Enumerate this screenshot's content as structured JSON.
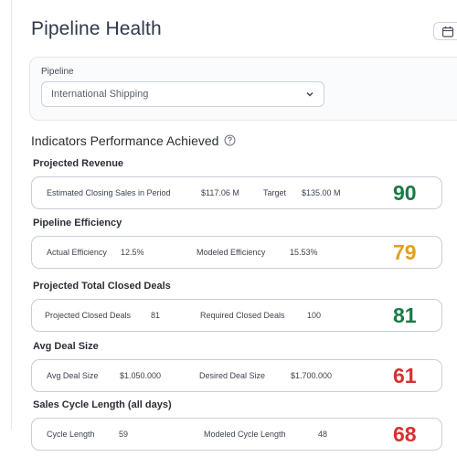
{
  "page": {
    "title": "Pipeline Health"
  },
  "filter": {
    "label": "Pipeline",
    "selected": "International Shipping"
  },
  "section": {
    "title": "Indicators Performance Achieved"
  },
  "colors": {
    "green": "#1a7a45",
    "orange": "#e0a020",
    "red": "#d83030"
  },
  "indicators": [
    {
      "title": "Projected Revenue",
      "f1_label": "Estimated Closing Sales in Period",
      "f1_value": "$117.06 M",
      "f2_label": "Target",
      "f2_value": "$135.00 M",
      "score": "90",
      "score_color": "#1a7a45"
    },
    {
      "title": "Pipeline Efficiency",
      "f1_label": "Actual Efficiency",
      "f1_value": "12.5%",
      "f2_label": "Modeled Efficiency",
      "f2_value": "15.53%",
      "score": "79",
      "score_color": "#e0a020"
    },
    {
      "title": "Projected Total Closed Deals",
      "f1_label": "Projected Closed Deals",
      "f1_value": "81",
      "f2_label": "Required Closed Deals",
      "f2_value": "100",
      "score": "81",
      "score_color": "#1a7a45"
    },
    {
      "title": "Avg Deal Size",
      "f1_label": "Avg Deal Size",
      "f1_value": "$1.050.000",
      "f2_label": "Desired Deal Size",
      "f2_value": "$1.700.000",
      "score": "61",
      "score_color": "#d83030"
    },
    {
      "title": "Sales Cycle Length (all days)",
      "f1_label": "Cycle Length",
      "f1_value": "59",
      "f2_label": "Modeled Cycle Length",
      "f2_value": "48",
      "score": "68",
      "score_color": "#d83030"
    }
  ]
}
